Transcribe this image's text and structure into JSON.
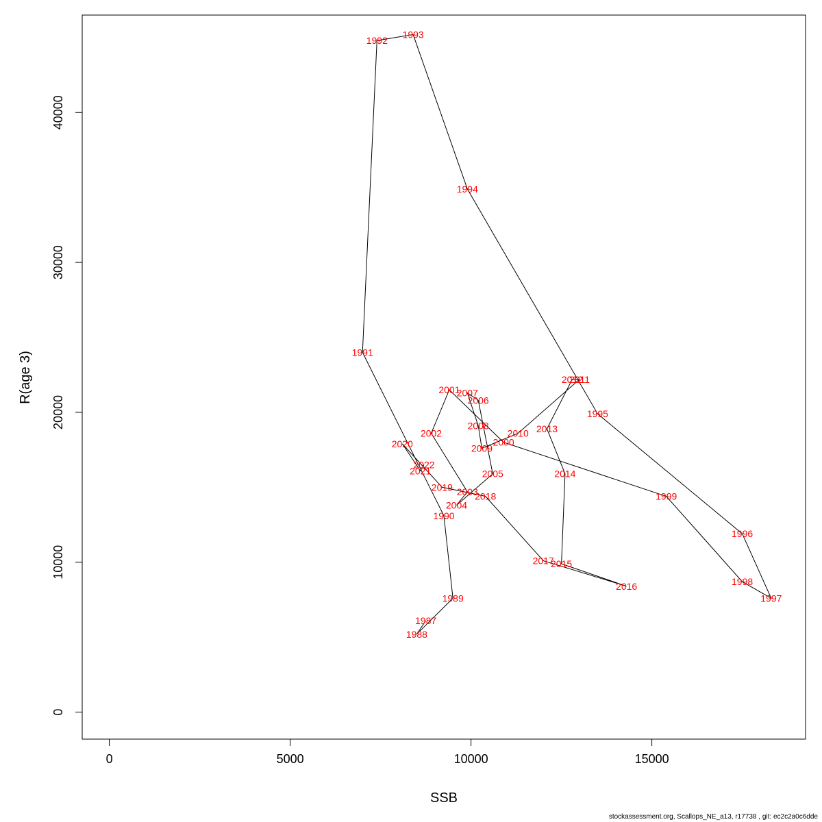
{
  "chart_data": {
    "type": "line",
    "title": "",
    "xlabel": "SSB",
    "ylabel": "R(age 3)",
    "xlim": [
      -750,
      19250
    ],
    "ylim": [
      -1800,
      46500
    ],
    "xticks": [
      0,
      5000,
      10000,
      15000
    ],
    "yticks": [
      0,
      10000,
      20000,
      30000,
      40000
    ],
    "label_color": "#ff0000",
    "line_color": "#000000",
    "grid": false,
    "legend": "none",
    "points": [
      {
        "year": "1987",
        "x": 8750,
        "y": 6100
      },
      {
        "year": "1988",
        "x": 8500,
        "y": 5200
      },
      {
        "year": "1989",
        "x": 9500,
        "y": 7600
      },
      {
        "year": "1990",
        "x": 9250,
        "y": 13100
      },
      {
        "year": "1991",
        "x": 7000,
        "y": 24000
      },
      {
        "year": "1992",
        "x": 7400,
        "y": 44800
      },
      {
        "year": "1993",
        "x": 8400,
        "y": 45200
      },
      {
        "year": "1994",
        "x": 9900,
        "y": 34900
      },
      {
        "year": "1995",
        "x": 13500,
        "y": 19900
      },
      {
        "year": "1996",
        "x": 17500,
        "y": 11900
      },
      {
        "year": "1997",
        "x": 18300,
        "y": 7600
      },
      {
        "year": "1998",
        "x": 17500,
        "y": 8700
      },
      {
        "year": "1999",
        "x": 15400,
        "y": 14400
      },
      {
        "year": "2000",
        "x": 10900,
        "y": 18000
      },
      {
        "year": "2001",
        "x": 9400,
        "y": 21500
      },
      {
        "year": "2002",
        "x": 8900,
        "y": 18600
      },
      {
        "year": "2003",
        "x": 9900,
        "y": 14700
      },
      {
        "year": "2004",
        "x": 9600,
        "y": 13800
      },
      {
        "year": "2005",
        "x": 10600,
        "y": 15900
      },
      {
        "year": "2006",
        "x": 10200,
        "y": 20800
      },
      {
        "year": "2007",
        "x": 9900,
        "y": 21300
      },
      {
        "year": "2008",
        "x": 10200,
        "y": 19100
      },
      {
        "year": "2009",
        "x": 10300,
        "y": 17600
      },
      {
        "year": "2010",
        "x": 11300,
        "y": 18600
      },
      {
        "year": "2011",
        "x": 13000,
        "y": 22200
      },
      {
        "year": "2012",
        "x": 12800,
        "y": 22200
      },
      {
        "year": "2013",
        "x": 12100,
        "y": 18900
      },
      {
        "year": "2014",
        "x": 12600,
        "y": 15900
      },
      {
        "year": "2015",
        "x": 12500,
        "y": 9900
      },
      {
        "year": "2016",
        "x": 14300,
        "y": 8400
      },
      {
        "year": "2017",
        "x": 12000,
        "y": 10100
      },
      {
        "year": "2018",
        "x": 10400,
        "y": 14400
      },
      {
        "year": "2019",
        "x": 9200,
        "y": 15000
      },
      {
        "year": "2020",
        "x": 8100,
        "y": 17900
      },
      {
        "year": "2021",
        "x": 8600,
        "y": 16100
      },
      {
        "year": "2022",
        "x": 8700,
        "y": 16500
      }
    ]
  },
  "footer": {
    "text": "stockassessment.org, Scallops_NE_a13, r17738 , git: ec2c2a0c6dde"
  }
}
